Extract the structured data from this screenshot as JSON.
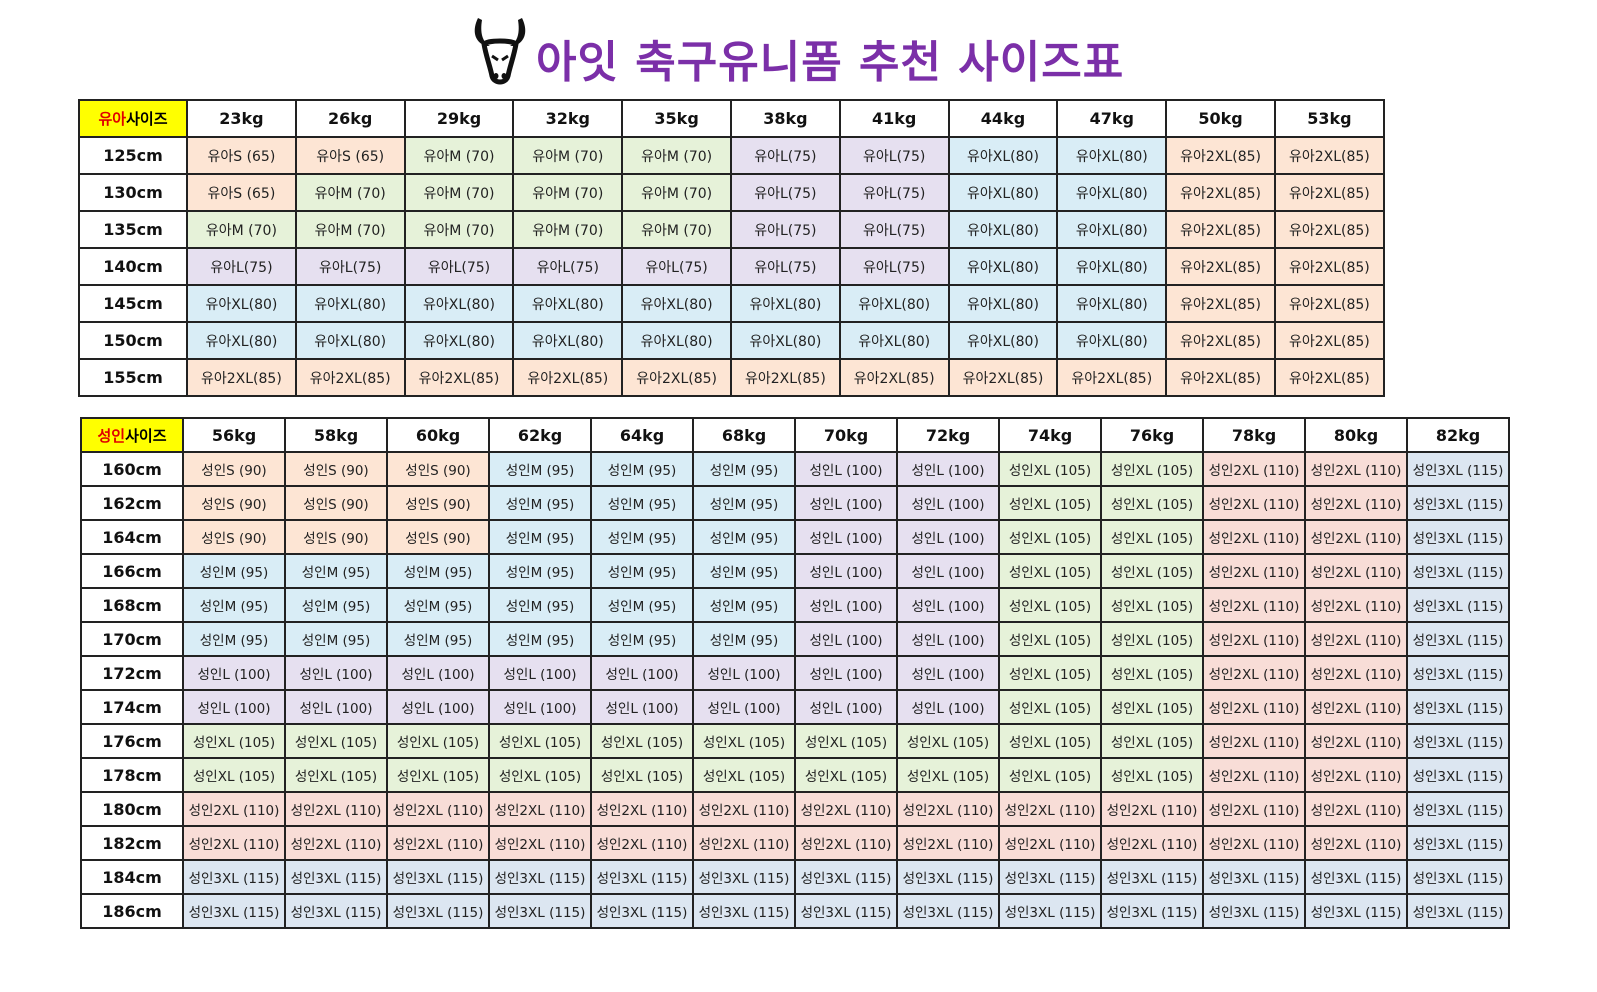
{
  "title": "아잇 축구유니폼 추천 사이즈표",
  "colors": {
    "title": "#7b2fa8",
    "S": "#fde5d4",
    "M_kid": "#e6f2d9",
    "M_adult": "#d9edf6",
    "L": "#e6e0f0",
    "XL_kid": "#d9edf6",
    "XL_adult": "#e6f2d9",
    "2XL_kid": "#fde5d4",
    "2XL_adult": "#f8ddd7",
    "3XL": "#dce6f1",
    "corner": "#ffff00",
    "corner_red": "#e00000"
  },
  "kids": {
    "corner_red": "유아",
    "corner_black": "사이즈",
    "weights": [
      "23kg",
      "26kg",
      "29kg",
      "32kg",
      "35kg",
      "38kg",
      "41kg",
      "44kg",
      "47kg",
      "50kg",
      "53kg"
    ],
    "rows": [
      {
        "height": "125cm",
        "cells": [
          "유아S (65)",
          "유아S (65)",
          "유아M (70)",
          "유아M (70)",
          "유아M (70)",
          "유아L(75)",
          "유아L(75)",
          "유아XL(80)",
          "유아XL(80)",
          "유아2XL(85)",
          "유아2XL(85)"
        ]
      },
      {
        "height": "130cm",
        "cells": [
          "유아S (65)",
          "유아M (70)",
          "유아M (70)",
          "유아M (70)",
          "유아M (70)",
          "유아L(75)",
          "유아L(75)",
          "유아XL(80)",
          "유아XL(80)",
          "유아2XL(85)",
          "유아2XL(85)"
        ]
      },
      {
        "height": "135cm",
        "cells": [
          "유아M (70)",
          "유아M (70)",
          "유아M (70)",
          "유아M (70)",
          "유아M (70)",
          "유아L(75)",
          "유아L(75)",
          "유아XL(80)",
          "유아XL(80)",
          "유아2XL(85)",
          "유아2XL(85)"
        ]
      },
      {
        "height": "140cm",
        "cells": [
          "유아L(75)",
          "유아L(75)",
          "유아L(75)",
          "유아L(75)",
          "유아L(75)",
          "유아L(75)",
          "유아L(75)",
          "유아XL(80)",
          "유아XL(80)",
          "유아2XL(85)",
          "유아2XL(85)"
        ]
      },
      {
        "height": "145cm",
        "cells": [
          "유아XL(80)",
          "유아XL(80)",
          "유아XL(80)",
          "유아XL(80)",
          "유아XL(80)",
          "유아XL(80)",
          "유아XL(80)",
          "유아XL(80)",
          "유아XL(80)",
          "유아2XL(85)",
          "유아2XL(85)"
        ]
      },
      {
        "height": "150cm",
        "cells": [
          "유아XL(80)",
          "유아XL(80)",
          "유아XL(80)",
          "유아XL(80)",
          "유아XL(80)",
          "유아XL(80)",
          "유아XL(80)",
          "유아XL(80)",
          "유아XL(80)",
          "유아2XL(85)",
          "유아2XL(85)"
        ]
      },
      {
        "height": "155cm",
        "cells": [
          "유아2XL(85)",
          "유아2XL(85)",
          "유아2XL(85)",
          "유아2XL(85)",
          "유아2XL(85)",
          "유아2XL(85)",
          "유아2XL(85)",
          "유아2XL(85)",
          "유아2XL(85)",
          "유아2XL(85)",
          "유아2XL(85)"
        ]
      }
    ]
  },
  "adults": {
    "corner_red": "성인",
    "corner_black": "사이즈",
    "weights": [
      "56kg",
      "58kg",
      "60kg",
      "62kg",
      "64kg",
      "68kg",
      "70kg",
      "72kg",
      "74kg",
      "76kg",
      "78kg",
      "80kg",
      "82kg"
    ],
    "rows": [
      {
        "height": "160cm",
        "cells": [
          "성인S (90)",
          "성인S (90)",
          "성인S (90)",
          "성인M (95)",
          "성인M (95)",
          "성인M (95)",
          "성인L (100)",
          "성인L (100)",
          "성인XL (105)",
          "성인XL (105)",
          "성인2XL (110)",
          "성인2XL (110)",
          "성인3XL (115)"
        ]
      },
      {
        "height": "162cm",
        "cells": [
          "성인S (90)",
          "성인S (90)",
          "성인S (90)",
          "성인M (95)",
          "성인M (95)",
          "성인M (95)",
          "성인L (100)",
          "성인L (100)",
          "성인XL (105)",
          "성인XL (105)",
          "성인2XL (110)",
          "성인2XL (110)",
          "성인3XL (115)"
        ]
      },
      {
        "height": "164cm",
        "cells": [
          "성인S (90)",
          "성인S (90)",
          "성인S (90)",
          "성인M (95)",
          "성인M (95)",
          "성인M (95)",
          "성인L (100)",
          "성인L (100)",
          "성인XL (105)",
          "성인XL (105)",
          "성인2XL (110)",
          "성인2XL (110)",
          "성인3XL (115)"
        ]
      },
      {
        "height": "166cm",
        "cells": [
          "성인M (95)",
          "성인M (95)",
          "성인M (95)",
          "성인M (95)",
          "성인M (95)",
          "성인M (95)",
          "성인L (100)",
          "성인L (100)",
          "성인XL (105)",
          "성인XL (105)",
          "성인2XL (110)",
          "성인2XL (110)",
          "성인3XL (115)"
        ]
      },
      {
        "height": "168cm",
        "cells": [
          "성인M (95)",
          "성인M (95)",
          "성인M (95)",
          "성인M (95)",
          "성인M (95)",
          "성인M (95)",
          "성인L (100)",
          "성인L (100)",
          "성인XL (105)",
          "성인XL (105)",
          "성인2XL (110)",
          "성인2XL (110)",
          "성인3XL (115)"
        ]
      },
      {
        "height": "170cm",
        "cells": [
          "성인M (95)",
          "성인M (95)",
          "성인M (95)",
          "성인M (95)",
          "성인M (95)",
          "성인M (95)",
          "성인L (100)",
          "성인L (100)",
          "성인XL (105)",
          "성인XL (105)",
          "성인2XL (110)",
          "성인2XL (110)",
          "성인3XL (115)"
        ]
      },
      {
        "height": "172cm",
        "cells": [
          "성인L (100)",
          "성인L (100)",
          "성인L (100)",
          "성인L (100)",
          "성인L (100)",
          "성인L (100)",
          "성인L (100)",
          "성인L (100)",
          "성인XL (105)",
          "성인XL (105)",
          "성인2XL (110)",
          "성인2XL (110)",
          "성인3XL (115)"
        ]
      },
      {
        "height": "174cm",
        "cells": [
          "성인L (100)",
          "성인L (100)",
          "성인L (100)",
          "성인L (100)",
          "성인L (100)",
          "성인L (100)",
          "성인L (100)",
          "성인L (100)",
          "성인XL (105)",
          "성인XL (105)",
          "성인2XL (110)",
          "성인2XL (110)",
          "성인3XL (115)"
        ]
      },
      {
        "height": "176cm",
        "cells": [
          "성인XL (105)",
          "성인XL (105)",
          "성인XL (105)",
          "성인XL (105)",
          "성인XL (105)",
          "성인XL (105)",
          "성인XL (105)",
          "성인XL (105)",
          "성인XL (105)",
          "성인XL (105)",
          "성인2XL (110)",
          "성인2XL (110)",
          "성인3XL (115)"
        ]
      },
      {
        "height": "178cm",
        "cells": [
          "성인XL (105)",
          "성인XL (105)",
          "성인XL (105)",
          "성인XL (105)",
          "성인XL (105)",
          "성인XL (105)",
          "성인XL (105)",
          "성인XL (105)",
          "성인XL (105)",
          "성인XL (105)",
          "성인2XL (110)",
          "성인2XL (110)",
          "성인3XL (115)"
        ]
      },
      {
        "height": "180cm",
        "cells": [
          "성인2XL (110)",
          "성인2XL (110)",
          "성인2XL (110)",
          "성인2XL (110)",
          "성인2XL (110)",
          "성인2XL (110)",
          "성인2XL (110)",
          "성인2XL (110)",
          "성인2XL (110)",
          "성인2XL (110)",
          "성인2XL (110)",
          "성인2XL (110)",
          "성인3XL (115)"
        ]
      },
      {
        "height": "182cm",
        "cells": [
          "성인2XL (110)",
          "성인2XL (110)",
          "성인2XL (110)",
          "성인2XL (110)",
          "성인2XL (110)",
          "성인2XL (110)",
          "성인2XL (110)",
          "성인2XL (110)",
          "성인2XL (110)",
          "성인2XL (110)",
          "성인2XL (110)",
          "성인2XL (110)",
          "성인3XL (115)"
        ]
      },
      {
        "height": "184cm",
        "cells": [
          "성인3XL (115)",
          "성인3XL (115)",
          "성인3XL (115)",
          "성인3XL (115)",
          "성인3XL (115)",
          "성인3XL (115)",
          "성인3XL (115)",
          "성인3XL (115)",
          "성인3XL (115)",
          "성인3XL (115)",
          "성인3XL (115)",
          "성인3XL (115)",
          "성인3XL (115)"
        ]
      },
      {
        "height": "186cm",
        "cells": [
          "성인3XL (115)",
          "성인3XL (115)",
          "성인3XL (115)",
          "성인3XL (115)",
          "성인3XL (115)",
          "성인3XL (115)",
          "성인3XL (115)",
          "성인3XL (115)",
          "성인3XL (115)",
          "성인3XL (115)",
          "성인3XL (115)",
          "성인3XL (115)",
          "성인3XL (115)"
        ]
      }
    ]
  }
}
